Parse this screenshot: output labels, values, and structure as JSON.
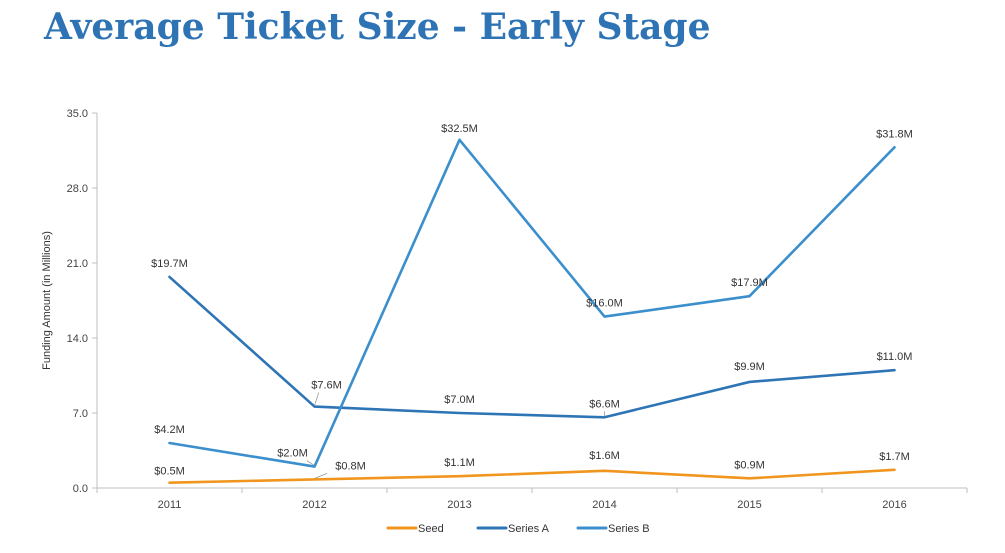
{
  "title": "Average Ticket Size - Early Stage",
  "chart_data": {
    "type": "line",
    "title": "Average Ticket Size - Early Stage",
    "ylabel": "Funding Amount (in Millions)",
    "xlabel": "",
    "categories": [
      "2011",
      "2012",
      "2013",
      "2014",
      "2015",
      "2016"
    ],
    "ylim": [
      0,
      35
    ],
    "yticks": [
      "0.0",
      "7.0",
      "14.0",
      "21.0",
      "28.0",
      "35.0"
    ],
    "grid": false,
    "legend_position": "bottom",
    "series": [
      {
        "name": "Seed",
        "color": "#F0961E",
        "values": [
          0.5,
          0.8,
          1.1,
          1.6,
          0.9,
          1.7
        ],
        "labels": [
          "$0.5M",
          "$0.8M",
          "$1.1M",
          "$1.6M",
          "$0.9M",
          "$1.7M"
        ]
      },
      {
        "name": "Series A",
        "color": "#2E75B6",
        "values": [
          19.7,
          7.6,
          7.0,
          6.6,
          9.9,
          11.0
        ],
        "labels": [
          "$19.7M",
          "$7.6M",
          "$7.0M",
          "$6.6M",
          "$9.9M",
          "$11.0M"
        ]
      },
      {
        "name": "Series B",
        "color": "#3A8FCC",
        "values": [
          4.2,
          2.0,
          32.5,
          16.0,
          17.9,
          31.8
        ],
        "labels": [
          "$4.2M",
          "$2.0M",
          "$32.5M",
          "$16.0M",
          "$17.9M",
          "$31.8M"
        ]
      }
    ]
  }
}
